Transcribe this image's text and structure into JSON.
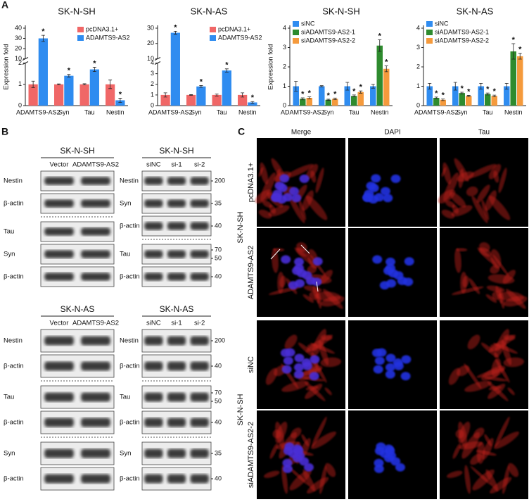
{
  "panel_labels": [
    "A",
    "B",
    "C"
  ],
  "chart_data": [
    {
      "type": "bar",
      "title": "SK-N-SH",
      "y_label": "Expression fold",
      "categories": [
        "ADAMTS9-AS2",
        "Syn",
        "Tau",
        "Nestin"
      ],
      "series": [
        {
          "name": "pcDNA3.1+",
          "color": "#f06767",
          "values": [
            1,
            1,
            1,
            1
          ],
          "errors": [
            0.15,
            0.02,
            0.03,
            0.2
          ]
        },
        {
          "name": "ADAMTS9-AS2",
          "color": "#2f8cf0",
          "values": [
            30,
            1.4,
            1.7,
            0.25
          ],
          "errors": [
            3,
            0.06,
            0.1,
            0.1
          ],
          "significance": [
            "*",
            "*",
            "*",
            "*"
          ]
        }
      ],
      "ylim": [
        0,
        40
      ],
      "ybreak": [
        2,
        10
      ],
      "yticks": [
        0,
        1,
        2,
        10,
        20,
        30,
        40
      ],
      "legend": "top right"
    },
    {
      "type": "bar",
      "title": "SK-N-AS",
      "categories": [
        "ADAMTS9-AS2",
        "Syn",
        "Tau",
        "Nestin"
      ],
      "series": [
        {
          "name": "pcDNA3.1+",
          "color": "#f06767",
          "values": [
            1,
            1,
            1,
            1
          ],
          "errors": [
            0.2,
            0.03,
            0.1,
            0.2
          ]
        },
        {
          "name": "ADAMTS9-AS2",
          "color": "#2f8cf0",
          "values": [
            27,
            1.8,
            3.3,
            0.3
          ],
          "errors": [
            1,
            0.08,
            0.15,
            0.08
          ],
          "significance": [
            "*",
            "*",
            "*",
            "*"
          ]
        }
      ],
      "ylim": [
        0,
        30
      ],
      "ybreak": [
        4,
        10
      ],
      "yticks": [
        0,
        1,
        2,
        3,
        4,
        10,
        20,
        30
      ],
      "legend": "top right"
    },
    {
      "type": "bar",
      "title": "SK-N-SH",
      "y_label": "Expression fold",
      "categories": [
        "ADAMTS9-AS2",
        "Syn",
        "Tau",
        "Nestin"
      ],
      "series": [
        {
          "name": "siNC",
          "color": "#2f8cf0",
          "values": [
            1,
            1,
            1,
            1
          ],
          "errors": [
            0.25,
            0.03,
            0.2,
            0.1
          ]
        },
        {
          "name": "siADAMTS9-AS2-1",
          "color": "#2e8b2e",
          "values": [
            0.35,
            0.3,
            0.5,
            3.1
          ],
          "errors": [
            0.05,
            0.03,
            0.05,
            0.3
          ],
          "significance": [
            "*",
            "*",
            "*",
            "*"
          ]
        },
        {
          "name": "siADAMTS9-AS2-2",
          "color": "#f59a3c",
          "values": [
            0.4,
            0.35,
            0.7,
            1.9
          ],
          "errors": [
            0.05,
            0.04,
            0.06,
            0.15
          ],
          "significance": [
            "*",
            "*",
            "*",
            "*"
          ]
        }
      ],
      "ylim": [
        0,
        4
      ],
      "yticks": [
        0,
        1,
        2,
        3,
        4
      ],
      "legend": "top left"
    },
    {
      "type": "bar",
      "title": "SK-N-AS",
      "categories": [
        "ADAMTS9-AS2",
        "Syn",
        "Tau",
        "Nestin"
      ],
      "series": [
        {
          "name": "siNC",
          "color": "#2f8cf0",
          "values": [
            1,
            1,
            1,
            1
          ],
          "errors": [
            0.15,
            0.2,
            0.15,
            0.15
          ]
        },
        {
          "name": "siADAMTS9-AS2-1",
          "color": "#2e8b2e",
          "values": [
            0.4,
            0.65,
            0.6,
            2.8
          ],
          "errors": [
            0.04,
            0.04,
            0.05,
            0.4
          ],
          "significance": [
            "*",
            "*",
            "*",
            "*"
          ]
        },
        {
          "name": "siADAMTS9-AS2-2",
          "color": "#f59a3c",
          "values": [
            0.3,
            0.5,
            0.5,
            2.55
          ],
          "errors": [
            0.04,
            0.03,
            0.04,
            0.15
          ],
          "significance": [
            "*",
            "*",
            "*",
            "*"
          ]
        }
      ],
      "ylim": [
        0,
        4
      ],
      "yticks": [
        0,
        1,
        2,
        3,
        4
      ],
      "legend": "top left"
    }
  ],
  "blots": [
    {
      "title": "SK-N-SH",
      "lanes": [
        "Vector",
        "ADAMTS9-AS2"
      ],
      "groups": [
        [
          {
            "label": "Nestin"
          },
          {
            "label": "β-actin"
          }
        ],
        [
          {
            "label": "Tau"
          },
          {
            "label": "Syn"
          },
          {
            "label": "β-actin"
          }
        ]
      ]
    },
    {
      "title": "SK-N-SH",
      "lanes": [
        "siNC",
        "si-1",
        "si-2"
      ],
      "groups": [
        [
          {
            "label": "Nestin",
            "markers": [
              200
            ]
          },
          {
            "label": "Syn",
            "markers": [
              35
            ]
          },
          {
            "label": "β-actin",
            "markers": [
              40
            ]
          }
        ],
        [
          {
            "label": "Tau",
            "markers": [
              70,
              50
            ]
          },
          {
            "label": "β-actin",
            "markers": [
              40
            ]
          }
        ]
      ]
    },
    {
      "title": "SK-N-AS",
      "lanes": [
        "Vector",
        "ADAMTS9-AS2"
      ],
      "groups": [
        [
          {
            "label": "Nestin"
          },
          {
            "label": "β-actin"
          }
        ],
        [
          {
            "label": "Tau"
          },
          {
            "label": "β-actin"
          }
        ],
        [
          {
            "label": "Syn"
          },
          {
            "label": "β-actin"
          }
        ]
      ]
    },
    {
      "title": "SK-N-AS",
      "lanes": [
        "siNC",
        "si-1",
        "si-2"
      ],
      "groups": [
        [
          {
            "label": "Nestin",
            "markers": [
              200
            ]
          },
          {
            "label": "β-actin",
            "markers": [
              40
            ]
          }
        ],
        [
          {
            "label": "Tau",
            "markers": [
              70,
              50
            ]
          },
          {
            "label": "β-actin",
            "markers": [
              40
            ]
          }
        ],
        [
          {
            "label": "Syn",
            "markers": [
              35
            ]
          },
          {
            "label": "β-actin",
            "markers": [
              40
            ]
          }
        ]
      ]
    }
  ],
  "micrographs": {
    "columns": [
      "Merge",
      "DAPI",
      "Tau"
    ],
    "groups": [
      {
        "label": "SK-N-SH",
        "rows": [
          "pcDNA3.1+",
          "ADAMTS9-AS2"
        ]
      },
      {
        "label": "SK-N-SH",
        "rows": [
          "siNC",
          "siADAMTS9-AS2-2"
        ]
      }
    ]
  }
}
